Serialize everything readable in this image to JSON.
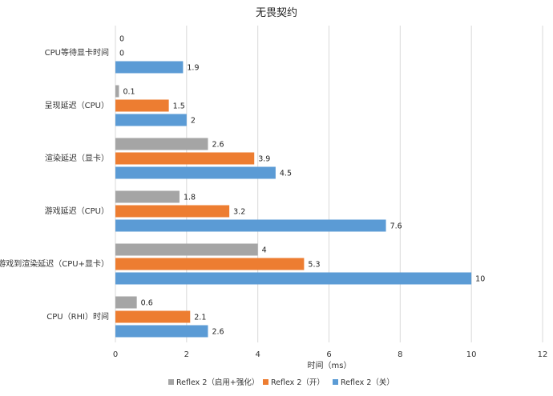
{
  "chart_data": {
    "type": "bar",
    "orientation": "horizontal",
    "title": "无畏契约",
    "xlabel": "时间（ms）",
    "ylabel": "",
    "xlim": [
      0,
      12
    ],
    "xticks": [
      0,
      2,
      4,
      6,
      8,
      10,
      12
    ],
    "grid": true,
    "legend_position": "bottom",
    "categories": [
      "CPU等待显卡时间",
      "呈现延迟（CPU）",
      "渲染延迟（显卡）",
      "游戏延迟（CPU）",
      "游戏到渲染延迟（CPU+显卡）",
      "CPU（RHI）时间"
    ],
    "series": [
      {
        "name": "Reflex 2（启用+强化）",
        "color": "#a5a5a5",
        "values": [
          0,
          0.1,
          2.6,
          1.8,
          4,
          0.6
        ]
      },
      {
        "name": "Reflex 2（开）",
        "color": "#ed7d31",
        "values": [
          0,
          1.5,
          3.9,
          3.2,
          5.3,
          2.1
        ]
      },
      {
        "name": "Reflex 2（关）",
        "color": "#5b9bd5",
        "values": [
          1.9,
          2,
          4.5,
          7.6,
          10,
          2.6
        ]
      }
    ]
  }
}
